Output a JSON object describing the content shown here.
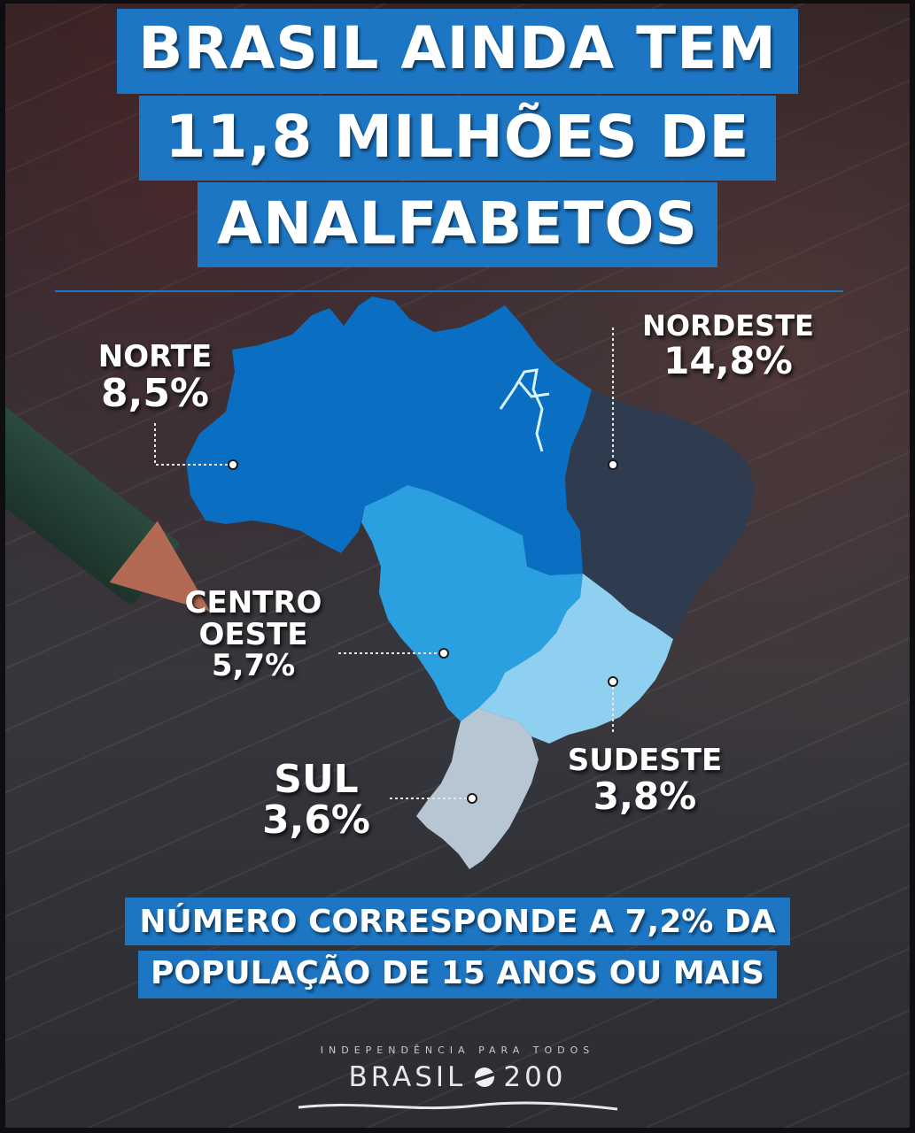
{
  "title": {
    "line1": "BRASIL AINDA TEM",
    "line2": "11,8 MILHÕES DE",
    "line3": "ANALFABETOS"
  },
  "regions": [
    {
      "name": "NORTE",
      "value": "8,5%",
      "color": "#0a6ec3"
    },
    {
      "name": "NORDESTE",
      "value": "14,8%",
      "color": "#2f3c4f"
    },
    {
      "name_line1": "CENTRO",
      "name_line2": "OESTE",
      "value": "5,7%",
      "color": "#2aa0e0"
    },
    {
      "name": "SUDESTE",
      "value": "3,8%",
      "color": "#8fd0f1"
    },
    {
      "name": "SUL",
      "value": "3,6%",
      "color": "#b7c6d3"
    }
  ],
  "footer": {
    "line1": "NÚMERO CORRESPONDE A 7,2% DA",
    "line2": "POPULAÇÃO DE 15 ANOS OU MAIS"
  },
  "logo": {
    "tagline": "INDEPENDÊNCIA PARA TODOS",
    "brand_left": "BRASIL",
    "brand_right": "200"
  }
}
